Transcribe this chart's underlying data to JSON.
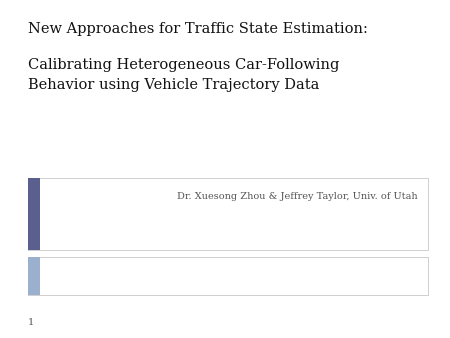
{
  "title_line1": "New Approaches for Traffic State Estimation:",
  "title_line2": "Calibrating Heterogeneous Car-Following\nBehavior using Vehicle Trajectory Data",
  "subtitle_text": "Dr. Xuesong Zhou & Jeffrey Taylor, Univ. of Utah",
  "background_color": "#ffffff",
  "box1_bg": "#ffffff",
  "box1_border": "#c8c8c8",
  "box1_bar_color": "#5a5f8e",
  "box2_bg": "#ffffff",
  "box2_border": "#c8c8c8",
  "box2_bar_color": "#9ab0ce",
  "page_number": "1",
  "title_fontsize": 10.5,
  "subtitle_fontsize": 7.0,
  "page_num_fontsize": 7
}
